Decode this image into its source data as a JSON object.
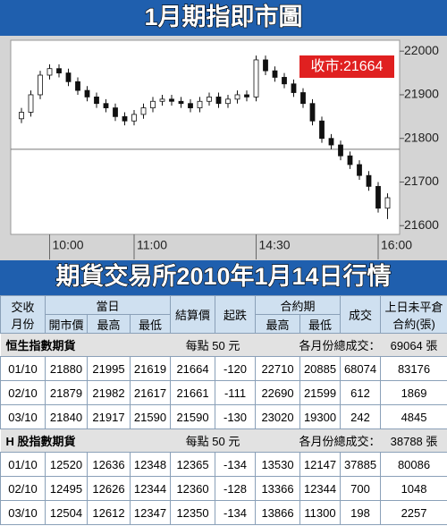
{
  "header": {
    "title": "1月期指即市圖",
    "subtitle": "期貨交易所2010年1月14日行情"
  },
  "chart_data": {
    "type": "candlestick",
    "annotation": "收市:21664",
    "open": [
      21845,
      21860,
      21900,
      21945,
      21960,
      21950,
      21930,
      21910,
      21895,
      21880,
      21870,
      21850,
      21840,
      21855,
      21870,
      21885,
      21890,
      21885,
      21880,
      21870,
      21885,
      21895,
      21880,
      21890,
      21900,
      21895,
      21980,
      21955,
      21940,
      21925,
      21905,
      21880,
      21840,
      21800,
      21785,
      21760,
      21740,
      21715,
      21690,
      21640
    ],
    "high": [
      21870,
      21910,
      21955,
      21970,
      21970,
      21960,
      21940,
      21920,
      21905,
      21890,
      21880,
      21860,
      21865,
      21880,
      21895,
      21900,
      21900,
      21895,
      21890,
      21895,
      21905,
      21905,
      21900,
      21910,
      21910,
      21990,
      21990,
      21965,
      21950,
      21935,
      21915,
      21890,
      21850,
      21810,
      21795,
      21770,
      21750,
      21725,
      21700,
      21674
    ],
    "low": [
      21835,
      21850,
      21890,
      21935,
      21940,
      21920,
      21900,
      21885,
      21870,
      21860,
      21840,
      21830,
      21830,
      21845,
      21860,
      21875,
      21875,
      21870,
      21860,
      21860,
      21875,
      21870,
      21870,
      21880,
      21885,
      21885,
      21945,
      21930,
      21915,
      21895,
      21870,
      21830,
      21790,
      21775,
      21750,
      21730,
      21705,
      21680,
      21630,
      21615
    ],
    "close": [
      21860,
      21900,
      21945,
      21960,
      21950,
      21930,
      21910,
      21895,
      21880,
      21870,
      21850,
      21840,
      21855,
      21870,
      21885,
      21890,
      21885,
      21880,
      21870,
      21885,
      21895,
      21880,
      21890,
      21900,
      21895,
      21980,
      21955,
      21940,
      21925,
      21905,
      21880,
      21840,
      21800,
      21785,
      21760,
      21740,
      21715,
      21690,
      21640,
      21664
    ],
    "up_color": "#ffffff",
    "down_color": "#111111",
    "reference_line": 21775,
    "ylim": [
      21580,
      22025
    ],
    "yticks": [
      21600,
      21700,
      21800,
      21900,
      22000
    ],
    "xticks": [
      {
        "value": 3,
        "label": "10:00"
      },
      {
        "value": 12,
        "label": "11:00"
      },
      {
        "value": 25,
        "label": "14:30"
      },
      {
        "value": 38,
        "label": "16:00"
      }
    ]
  },
  "table": {
    "header": {
      "month": [
        "交收",
        "月份"
      ],
      "day": "當日",
      "open": "開市價",
      "high": "最高",
      "low": "最低",
      "settle": "結算價",
      "change": "起跌",
      "contract": "合約期",
      "c_high": "最高",
      "c_low": "最低",
      "volume": "成交",
      "oi": [
        "上日未平倉",
        "合約(張)"
      ]
    },
    "sections": [
      {
        "name": "恒生指數期貨",
        "unit": "每點 50 元",
        "total_label": "各月份總成交：",
        "total": "69064 張",
        "rows": [
          [
            "01/10",
            21880,
            21995,
            21619,
            21664,
            -120,
            22710,
            20885,
            68074,
            83176
          ],
          [
            "02/10",
            21879,
            21982,
            21617,
            21661,
            -111,
            22690,
            21599,
            612,
            1869
          ],
          [
            "03/10",
            21840,
            21917,
            21590,
            21590,
            -130,
            23020,
            19300,
            242,
            4845
          ]
        ]
      },
      {
        "name": "H 股指數期貨",
        "unit": "每點 50 元",
        "total_label": "各月份總成交：",
        "total": "38788 張",
        "rows": [
          [
            "01/10",
            12520,
            12636,
            12348,
            12365,
            -134,
            13530,
            12147,
            37885,
            80086
          ],
          [
            "02/10",
            12495,
            12626,
            12344,
            12360,
            -128,
            13366,
            12344,
            700,
            1048
          ],
          [
            "03/10",
            12504,
            12612,
            12347,
            12350,
            -134,
            13866,
            11300,
            198,
            2257
          ]
        ]
      }
    ]
  }
}
